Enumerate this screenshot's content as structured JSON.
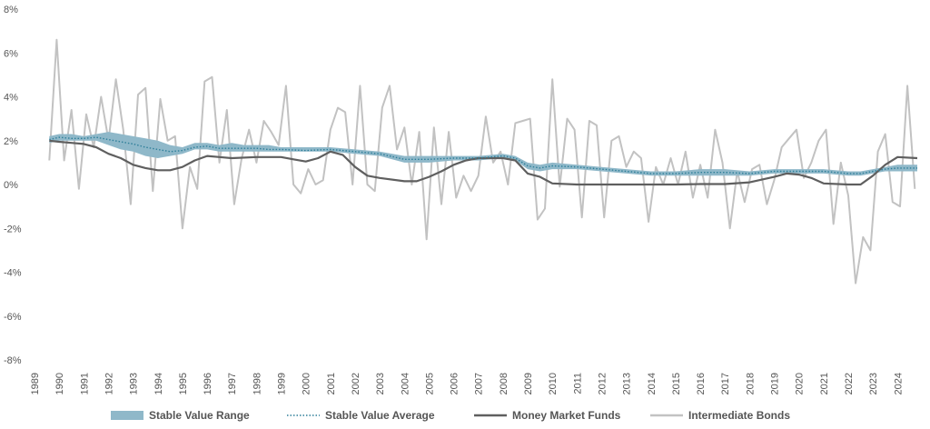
{
  "chart_data": {
    "type": "line",
    "title": "",
    "xlabel": "",
    "ylabel": "",
    "ylim": [
      -8,
      8
    ],
    "yticks": [
      -8,
      -6,
      -4,
      -2,
      0,
      2,
      4,
      6,
      8
    ],
    "ytick_labels": [
      "-8%",
      "-6%",
      "-4%",
      "-2%",
      "0%",
      "2%",
      "4%",
      "6%",
      "8%"
    ],
    "xlim": [
      1989,
      2024.8
    ],
    "xtick_labels": [
      "1989",
      "1990",
      "1991",
      "1992",
      "1993",
      "1994",
      "1995",
      "1996",
      "1997",
      "1998",
      "1999",
      "2000",
      "2001",
      "2002",
      "2003",
      "2004",
      "2005",
      "2006",
      "2007",
      "2008",
      "2009",
      "2010",
      "2011",
      "2012",
      "2013",
      "2014",
      "2015",
      "2016",
      "2017",
      "2018",
      "2019",
      "2020",
      "2021",
      "2022",
      "2023",
      "2024"
    ],
    "grid": false,
    "legend_position": "bottom",
    "colors": {
      "range": "#8fb8c9",
      "average": "#2e7f99",
      "money_market": "#5f5f5f",
      "bonds": "#c2c2c2"
    },
    "series": [
      {
        "name": "Stable Value Range",
        "type": "band",
        "x": [
          1989.6,
          1990,
          1990.5,
          1991,
          1991.5,
          1992,
          1992.5,
          1993,
          1993.5,
          1994,
          1994.5,
          1995,
          1995.5,
          1996,
          1996.5,
          1997,
          1997.5,
          1998,
          1998.5,
          1999,
          2000,
          2001,
          2002,
          2003,
          2004,
          2005,
          2006,
          2007,
          2008,
          2008.5,
          2009,
          2009.5,
          2010,
          2011,
          2012,
          2013,
          2014,
          2015,
          2016,
          2017,
          2018,
          2019,
          2020,
          2021,
          2022,
          2022.5,
          2023,
          2023.5,
          2024,
          2024.8
        ],
        "low": [
          1.9,
          2.0,
          2.0,
          2.0,
          2.0,
          1.8,
          1.6,
          1.5,
          1.3,
          1.2,
          1.3,
          1.4,
          1.6,
          1.6,
          1.5,
          1.5,
          1.5,
          1.5,
          1.5,
          1.5,
          1.5,
          1.5,
          1.4,
          1.3,
          1.0,
          1.0,
          1.1,
          1.1,
          1.2,
          1.1,
          0.7,
          0.6,
          0.7,
          0.7,
          0.6,
          0.5,
          0.4,
          0.4,
          0.4,
          0.4,
          0.4,
          0.5,
          0.5,
          0.5,
          0.4,
          0.4,
          0.5,
          0.6,
          0.6,
          0.6
        ],
        "high": [
          2.2,
          2.3,
          2.3,
          2.2,
          2.3,
          2.4,
          2.3,
          2.2,
          2.1,
          2.0,
          1.8,
          1.7,
          1.9,
          1.9,
          1.8,
          1.9,
          1.8,
          1.8,
          1.8,
          1.7,
          1.7,
          1.7,
          1.6,
          1.5,
          1.3,
          1.3,
          1.3,
          1.3,
          1.4,
          1.3,
          1.0,
          0.9,
          1.0,
          0.9,
          0.8,
          0.7,
          0.6,
          0.6,
          0.7,
          0.7,
          0.6,
          0.7,
          0.7,
          0.7,
          0.6,
          0.6,
          0.7,
          0.8,
          0.9,
          0.9
        ]
      },
      {
        "name": "Stable Value Average",
        "type": "line",
        "x": [
          1989.6,
          1990,
          1990.5,
          1991,
          1991.5,
          1992,
          1992.5,
          1993,
          1993.5,
          1994,
          1994.5,
          1995,
          1995.5,
          1996,
          1996.5,
          1997,
          1997.5,
          1998,
          1998.5,
          1999,
          2000,
          2001,
          2002,
          2003,
          2004,
          2005,
          2006,
          2007,
          2008,
          2008.5,
          2009,
          2009.5,
          2010,
          2011,
          2012,
          2013,
          2014,
          2015,
          2016,
          2017,
          2018,
          2019,
          2020,
          2021,
          2022,
          2022.5,
          2023,
          2023.5,
          2024,
          2024.8
        ],
        "values": [
          2.05,
          2.15,
          2.1,
          2.1,
          2.15,
          2.05,
          1.95,
          1.85,
          1.7,
          1.6,
          1.5,
          1.55,
          1.7,
          1.75,
          1.65,
          1.65,
          1.65,
          1.65,
          1.6,
          1.6,
          1.55,
          1.6,
          1.5,
          1.4,
          1.15,
          1.15,
          1.2,
          1.2,
          1.3,
          1.2,
          0.85,
          0.75,
          0.85,
          0.8,
          0.7,
          0.6,
          0.5,
          0.5,
          0.55,
          0.55,
          0.5,
          0.6,
          0.6,
          0.6,
          0.5,
          0.5,
          0.6,
          0.7,
          0.75,
          0.75
        ]
      },
      {
        "name": "Money Market Funds",
        "type": "line",
        "x": [
          1989.6,
          1990,
          1990.5,
          1991,
          1991.5,
          1992,
          1992.5,
          1993,
          1993.5,
          1994,
          1994.5,
          1995,
          1995.5,
          1996,
          1996.5,
          1997,
          1998,
          1999,
          1999.5,
          2000,
          2000.5,
          2001,
          2001.5,
          2002,
          2002.5,
          2003,
          2004,
          2004.5,
          2005,
          2005.5,
          2006,
          2006.5,
          2007,
          2007.5,
          2008,
          2008.5,
          2009,
          2009.5,
          2010,
          2011,
          2012,
          2013,
          2014,
          2015,
          2016,
          2017,
          2018,
          2019,
          2019.5,
          2020,
          2020.5,
          2021,
          2022,
          2022.5,
          2023,
          2023.5,
          2024,
          2024.8
        ],
        "values": [
          2.0,
          1.95,
          1.9,
          1.85,
          1.7,
          1.4,
          1.2,
          0.9,
          0.75,
          0.65,
          0.65,
          0.8,
          1.1,
          1.3,
          1.25,
          1.2,
          1.25,
          1.25,
          1.15,
          1.05,
          1.2,
          1.5,
          1.35,
          0.8,
          0.4,
          0.3,
          0.15,
          0.15,
          0.35,
          0.6,
          0.9,
          1.1,
          1.2,
          1.2,
          1.2,
          1.1,
          0.5,
          0.35,
          0.05,
          0.0,
          0.0,
          0.0,
          0.0,
          0.0,
          0.02,
          0.02,
          0.1,
          0.35,
          0.5,
          0.45,
          0.3,
          0.05,
          0.0,
          0.0,
          0.4,
          0.9,
          1.25,
          1.2
        ]
      },
      {
        "name": "Intermediate Bonds",
        "type": "line",
        "x": [
          1989.6,
          1989.9,
          1990.2,
          1990.5,
          1990.8,
          1991.1,
          1991.4,
          1991.7,
          1992.0,
          1992.3,
          1992.6,
          1992.9,
          1993.2,
          1993.5,
          1993.8,
          1994.1,
          1994.4,
          1994.7,
          1995.0,
          1995.3,
          1995.6,
          1995.9,
          1996.2,
          1996.5,
          1996.8,
          1997.1,
          1997.4,
          1997.7,
          1998.0,
          1998.3,
          1998.6,
          1998.9,
          1999.2,
          1999.5,
          1999.8,
          2000.1,
          2000.4,
          2000.7,
          2001.0,
          2001.3,
          2001.6,
          2001.9,
          2002.2,
          2002.5,
          2002.8,
          2003.1,
          2003.4,
          2003.7,
          2004.0,
          2004.3,
          2004.6,
          2004.9,
          2005.2,
          2005.5,
          2005.8,
          2006.1,
          2006.4,
          2006.7,
          2007.0,
          2007.3,
          2007.6,
          2007.9,
          2008.2,
          2008.5,
          2008.8,
          2009.1,
          2009.4,
          2009.7,
          2010.0,
          2010.3,
          2010.6,
          2010.9,
          2011.2,
          2011.5,
          2011.8,
          2012.1,
          2012.4,
          2012.7,
          2013.0,
          2013.3,
          2013.6,
          2013.9,
          2014.2,
          2014.5,
          2014.8,
          2015.1,
          2015.4,
          2015.7,
          2016.0,
          2016.3,
          2016.6,
          2016.9,
          2017.2,
          2017.5,
          2017.8,
          2018.1,
          2018.4,
          2018.7,
          2019.0,
          2019.3,
          2019.6,
          2019.9,
          2020.2,
          2020.5,
          2020.8,
          2021.1,
          2021.4,
          2021.7,
          2022.0,
          2022.3,
          2022.6,
          2022.9,
          2023.2,
          2023.5,
          2023.8,
          2024.1,
          2024.4,
          2024.7
        ],
        "values": [
          1.1,
          6.6,
          1.1,
          3.4,
          -0.2,
          3.2,
          1.7,
          4.0,
          2.0,
          4.8,
          2.5,
          -0.9,
          4.1,
          4.4,
          -0.3,
          3.9,
          2.0,
          2.2,
          -2.0,
          0.8,
          -0.2,
          4.7,
          4.9,
          1.0,
          3.4,
          -0.9,
          1.2,
          2.5,
          1.0,
          2.9,
          2.4,
          1.8,
          4.5,
          0.0,
          -0.4,
          0.7,
          0.0,
          0.2,
          2.5,
          3.5,
          3.3,
          0.0,
          4.5,
          0.0,
          -0.3,
          3.5,
          4.5,
          1.6,
          2.6,
          0.0,
          2.4,
          -2.5,
          2.6,
          -0.9,
          2.4,
          -0.6,
          0.4,
          -0.3,
          0.4,
          3.1,
          1.0,
          1.5,
          0.0,
          2.8,
          2.9,
          3.0,
          -1.6,
          -1.1,
          4.8,
          -0.1,
          3.0,
          2.5,
          -1.5,
          2.9,
          2.7,
          -1.5,
          2.0,
          2.2,
          0.8,
          1.5,
          1.2,
          -1.7,
          0.8,
          0.0,
          1.2,
          0.0,
          1.5,
          -0.6,
          0.9,
          -0.6,
          2.5,
          1.0,
          -2.0,
          0.6,
          -0.8,
          0.7,
          0.9,
          -0.9,
          0.2,
          1.7,
          2.1,
          2.5,
          0.3,
          1.0,
          2.0,
          2.5,
          -1.8,
          1.0,
          -0.5,
          -4.5,
          -2.4,
          -3.0,
          1.5,
          2.3,
          -0.8,
          -1.0,
          4.5,
          -0.2
        ]
      }
    ]
  }
}
